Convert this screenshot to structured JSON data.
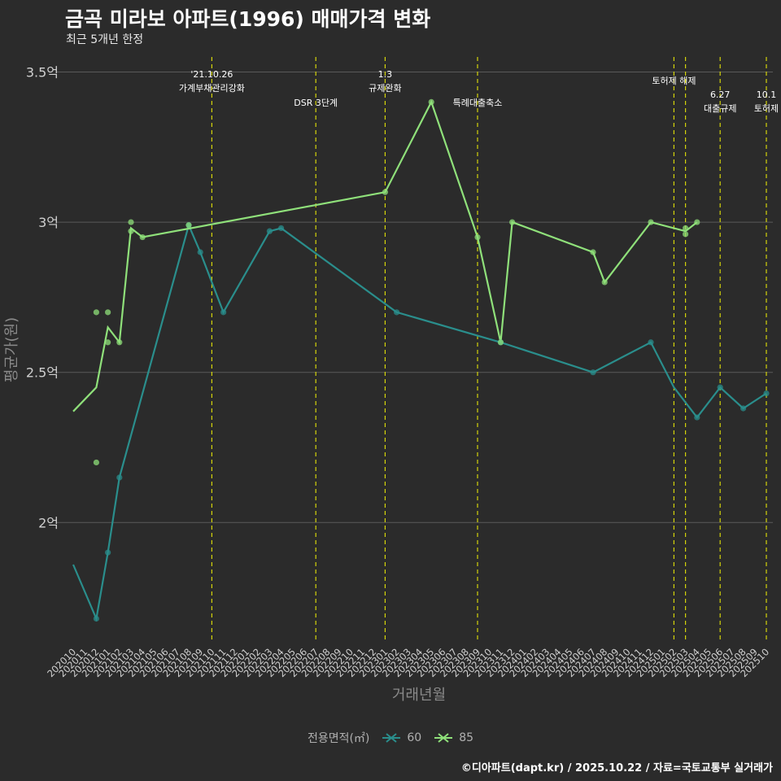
{
  "title": "금곡 미라보 아파트(1996) 매매가격 변화",
  "subtitle": "최근 5개년 한정",
  "caption": "©디아파트(dapt.kr) / 2025.10.22 / 자료=국토교통부 실거래가",
  "colors": {
    "background": "#2b2b2b",
    "grid": "#5a5a5a",
    "event_line": "#d4d40a",
    "series_60": "#2a8e8c",
    "series_85": "#8fe07a"
  },
  "chart_data": {
    "type": "line",
    "title": "금곡 미라보 아파트(1996) 매매가격 변화",
    "xlabel": "거래년월",
    "ylabel": "평균가(원)",
    "ylim": [
      1.6,
      3.55
    ],
    "y_ticks": [
      {
        "value": 2.0,
        "label": "2억"
      },
      {
        "value": 2.5,
        "label": "2.5억"
      },
      {
        "value": 3.0,
        "label": "3억"
      },
      {
        "value": 3.5,
        "label": "3.5억"
      }
    ],
    "categories": [
      "202010",
      "202011",
      "202012",
      "202101",
      "202102",
      "202103",
      "202104",
      "202105",
      "202106",
      "202107",
      "202108",
      "202109",
      "202110",
      "202111",
      "202112",
      "202201",
      "202202",
      "202203",
      "202204",
      "202205",
      "202206",
      "202207",
      "202208",
      "202209",
      "202210",
      "202211",
      "202212",
      "202301",
      "202302",
      "202303",
      "202304",
      "202305",
      "202306",
      "202307",
      "202308",
      "202309",
      "202310",
      "202311",
      "202312",
      "202401",
      "202402",
      "202403",
      "202404",
      "202405",
      "202406",
      "202407",
      "202408",
      "202409",
      "202410",
      "202411",
      "202412",
      "202501",
      "202502",
      "202503",
      "202504",
      "202505",
      "202506",
      "202507",
      "202508",
      "202509",
      "202510"
    ],
    "legend_title": "전용면적(㎡)",
    "series": [
      {
        "name": "60",
        "line": [
          [
            "202010",
            1.86
          ],
          [
            "202012",
            1.68
          ],
          [
            "202101",
            1.9
          ],
          [
            "202102",
            2.15
          ],
          [
            "202108",
            2.99
          ],
          [
            "202109",
            2.9
          ],
          [
            "202111",
            2.7
          ],
          [
            "202203",
            2.97
          ],
          [
            "202204",
            2.98
          ],
          [
            "202302",
            2.7
          ],
          [
            "202311",
            2.6
          ],
          [
            "202407",
            2.5
          ],
          [
            "202412",
            2.6
          ],
          [
            "202502",
            2.45
          ],
          [
            "202504",
            2.35
          ],
          [
            "202506",
            2.45
          ],
          [
            "202508",
            2.38
          ],
          [
            "202510",
            2.43
          ]
        ],
        "points": [
          [
            "202012",
            1.68
          ],
          [
            "202101",
            1.9
          ],
          [
            "202102",
            2.15
          ],
          [
            "202108",
            2.99
          ],
          [
            "202109",
            2.9
          ],
          [
            "202111",
            2.7
          ],
          [
            "202203",
            2.97
          ],
          [
            "202204",
            2.98
          ],
          [
            "202302",
            2.7
          ],
          [
            "202311",
            2.6
          ],
          [
            "202407",
            2.5
          ],
          [
            "202412",
            2.6
          ],
          [
            "202504",
            2.35
          ],
          [
            "202506",
            2.45
          ],
          [
            "202508",
            2.38
          ],
          [
            "202510",
            2.43
          ]
        ]
      },
      {
        "name": "85",
        "line": [
          [
            "202010",
            2.37
          ],
          [
            "202012",
            2.45
          ],
          [
            "202101",
            2.65
          ],
          [
            "202102",
            2.6
          ],
          [
            "202103",
            2.98
          ],
          [
            "202104",
            2.95
          ],
          [
            "202301",
            3.1
          ],
          [
            "202305",
            3.4
          ],
          [
            "202309",
            2.95
          ],
          [
            "202311",
            2.6
          ],
          [
            "202312",
            3.0
          ],
          [
            "202407",
            2.9
          ],
          [
            "202408",
            2.8
          ],
          [
            "202412",
            3.0
          ],
          [
            "202503",
            2.97
          ],
          [
            "202504",
            3.0
          ]
        ],
        "points": [
          [
            "202012",
            2.7
          ],
          [
            "202012",
            2.2
          ],
          [
            "202101",
            2.7
          ],
          [
            "202101",
            2.6
          ],
          [
            "202102",
            2.6
          ],
          [
            "202103",
            3.0
          ],
          [
            "202103",
            2.97
          ],
          [
            "202104",
            2.95
          ],
          [
            "202108",
            2.99
          ],
          [
            "202301",
            3.1
          ],
          [
            "202305",
            3.4
          ],
          [
            "202309",
            2.95
          ],
          [
            "202311",
            2.6
          ],
          [
            "202312",
            3.0
          ],
          [
            "202407",
            2.9
          ],
          [
            "202408",
            2.8
          ],
          [
            "202412",
            3.0
          ],
          [
            "202503",
            2.98
          ],
          [
            "202503",
            2.96
          ],
          [
            "202504",
            3.0
          ]
        ]
      }
    ],
    "events": [
      {
        "x": "202110",
        "lines": [
          "'21.10.26",
          "가계부채관리강화"
        ],
        "row": "top"
      },
      {
        "x": "202207",
        "lines": [
          "DSR 3단계"
        ],
        "row": "mid"
      },
      {
        "x": "202301",
        "lines": [
          "1.3",
          "규제완화"
        ],
        "row": "top"
      },
      {
        "x": "202309",
        "lines": [
          "특례대출축소"
        ],
        "row": "mid"
      },
      {
        "x": "202502",
        "lines": [
          "토허제 해제"
        ],
        "row": "top2"
      },
      {
        "x": "202503",
        "lines": [],
        "row": "none"
      },
      {
        "x": "202506",
        "lines": [
          "6.27",
          "대출규제"
        ],
        "row": "low"
      },
      {
        "x": "202510",
        "lines": [
          "10.1",
          "토허제"
        ],
        "row": "low"
      }
    ]
  }
}
